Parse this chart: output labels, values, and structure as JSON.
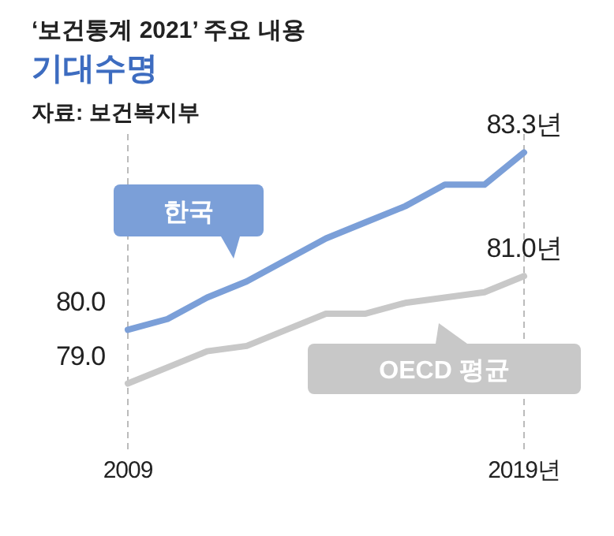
{
  "chart_data": {
    "type": "line",
    "title": "‘보건통계 2021’ 주요 내용",
    "subtitle": "기대수명",
    "annotations": [
      "자료: 보건복지부"
    ],
    "x": [
      2009,
      2010,
      2011,
      2012,
      2013,
      2014,
      2015,
      2016,
      2017,
      2018,
      2019
    ],
    "xlim": [
      2009,
      2019
    ],
    "xticks": [
      {
        "value": 2009,
        "label": "2009"
      },
      {
        "value": 2019,
        "label": "2019년"
      }
    ],
    "tick_labels": "x",
    "marker": "none",
    "line_style": "solid",
    "ref_lines": [
      {
        "axis": "x",
        "value": 2009,
        "line_style": "dashed",
        "color": "#bbbbbb"
      },
      {
        "axis": "x",
        "value": 2019,
        "line_style": "dashed",
        "color": "#bbbbbb"
      }
    ],
    "series": [
      {
        "name": "한국",
        "color": "#7b9fd8",
        "values": [
          80.0,
          80.2,
          80.6,
          80.9,
          81.3,
          81.7,
          82.0,
          82.3,
          82.7,
          82.7,
          83.3
        ],
        "value_labels": [
          "80.0",
          null,
          null,
          null,
          null,
          null,
          null,
          null,
          null,
          null,
          "83.3년"
        ]
      },
      {
        "name": "OECD 평균",
        "color": "#c8c8c8",
        "values": [
          79.0,
          79.3,
          79.6,
          79.7,
          80.0,
          80.3,
          80.3,
          80.5,
          80.6,
          80.7,
          81.0
        ],
        "value_labels": [
          "79.0",
          null,
          null,
          null,
          null,
          null,
          null,
          null,
          null,
          null,
          "81.0년"
        ]
      }
    ]
  }
}
